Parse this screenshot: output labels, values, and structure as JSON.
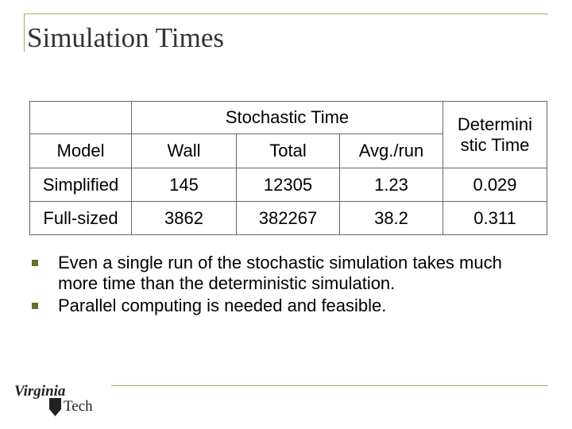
{
  "slide": {
    "title": "Simulation Times"
  },
  "table": {
    "group_header": "Stochastic Time",
    "col_model": "Model",
    "col_wall": "Wall",
    "col_total": "Total",
    "col_avg": "Avg./run",
    "col_det": "Determini stic Time",
    "rows": [
      {
        "model": "Simplified",
        "wall": "145",
        "total": "12305",
        "avg": "1.23",
        "det": "0.029"
      },
      {
        "model": "Full-sized",
        "wall": "3862",
        "total": "382267",
        "avg": "38.2",
        "det": "0.311"
      }
    ]
  },
  "bullets": [
    "Even a single run of the stochastic simulation takes much more time than the deterministic simulation.",
    "Parallel computing is needed and feasible."
  ],
  "logo": {
    "line1": "Virginia",
    "line2": "Tech"
  },
  "colors": {
    "accent": "#b5a85a",
    "bullet": "#6b6b2a",
    "title": "#333333"
  }
}
